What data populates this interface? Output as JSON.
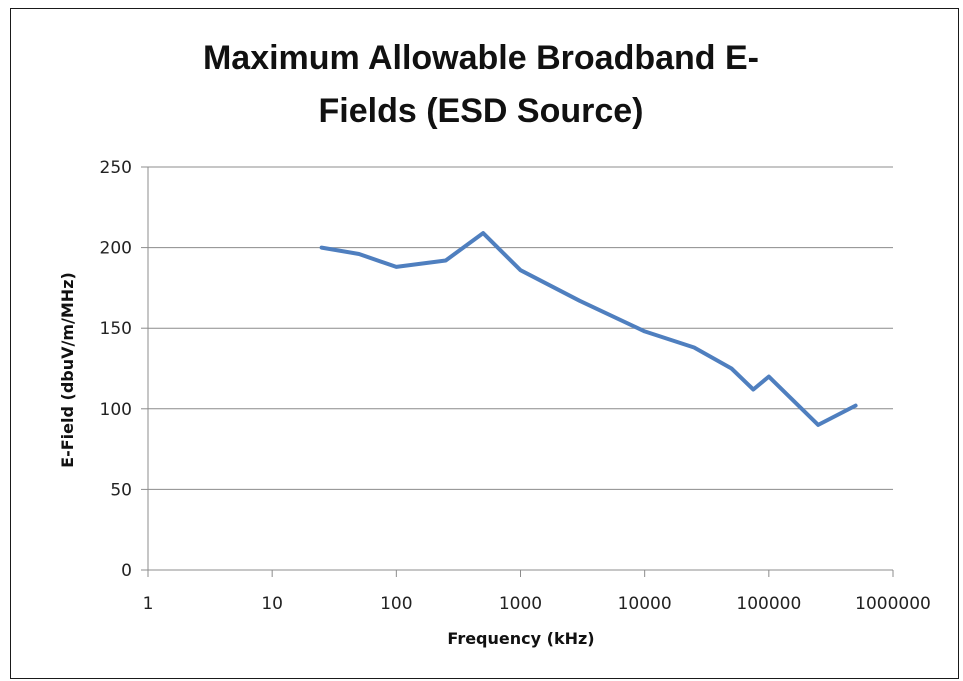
{
  "chart_data": {
    "type": "line",
    "title_lines": [
      "Maximum Allowable Broadband E-",
      "Fields (ESD Source)"
    ],
    "xlabel": "Frequency (kHz)",
    "ylabel": "E-Field (dbuV/m/MHz)",
    "x_scale": "log",
    "xlim": [
      1,
      1000000
    ],
    "ylim": [
      0,
      250
    ],
    "x_ticks": [
      "1",
      "10",
      "100",
      "1000",
      "10000",
      "100000",
      "1000000"
    ],
    "y_ticks": [
      "0",
      "50",
      "100",
      "150",
      "200",
      "250"
    ],
    "grid": "horizontal",
    "legend": "none",
    "series": [
      {
        "color": "#4f7fbf",
        "x": [
          25,
          50,
          100,
          250,
          500,
          1000,
          3000,
          10000,
          25000,
          50000,
          75000,
          100000,
          250000,
          500000
        ],
        "y": [
          200,
          196,
          188,
          192,
          209,
          186,
          167,
          148,
          138,
          125,
          112,
          120,
          90,
          102
        ]
      }
    ]
  }
}
